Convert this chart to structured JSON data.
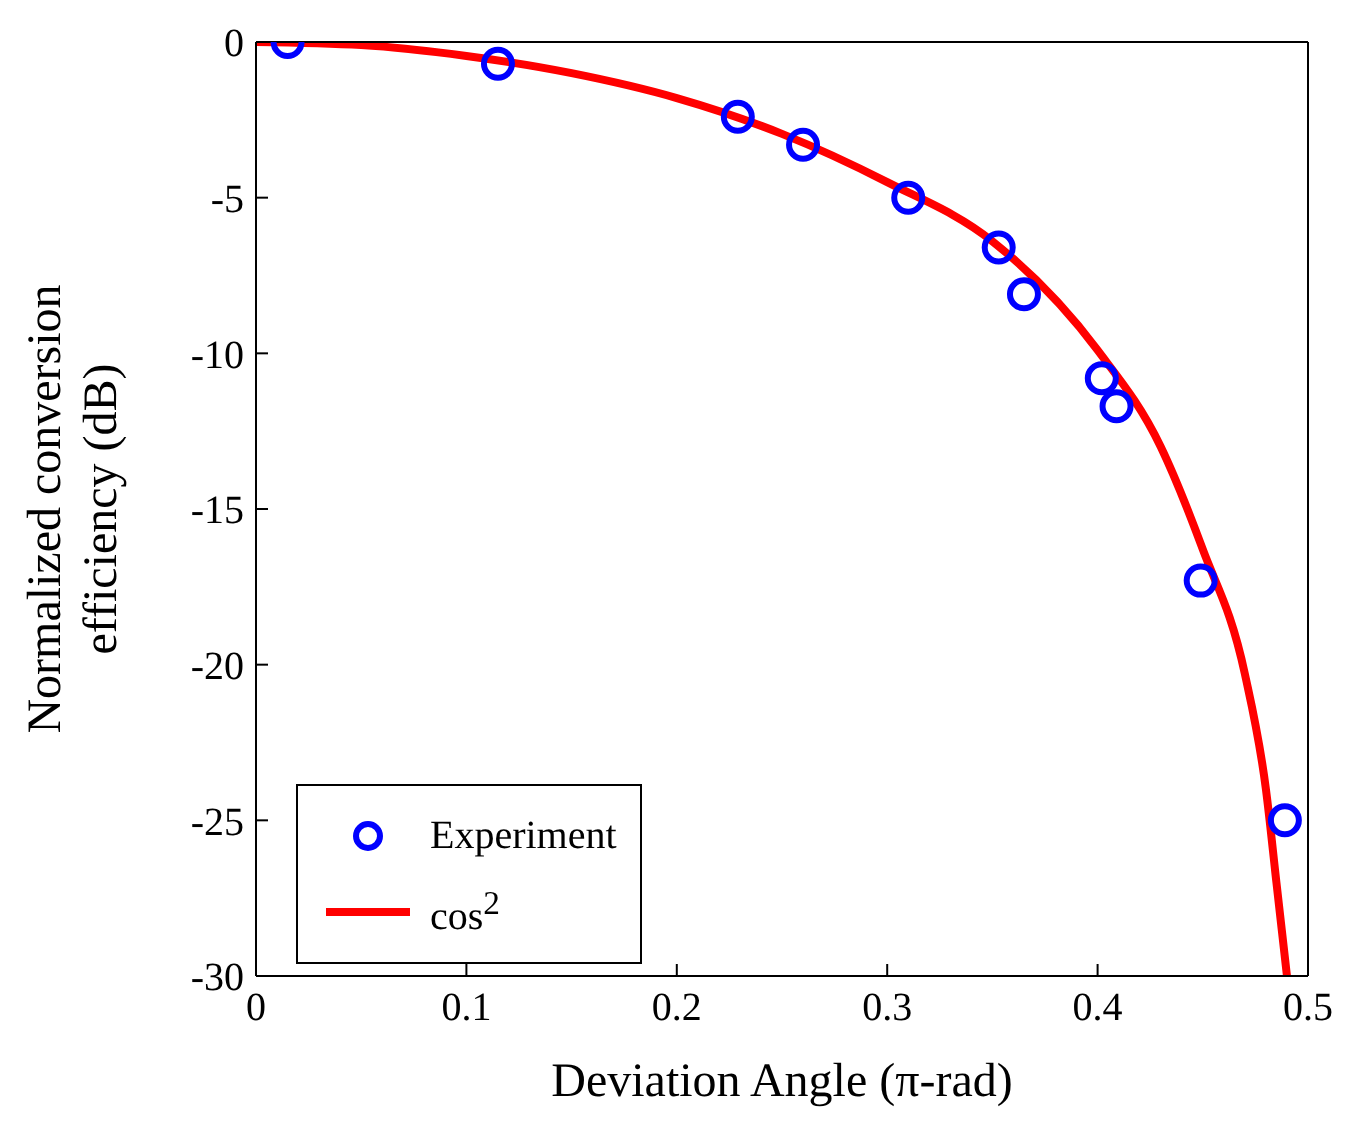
{
  "chart_data": {
    "type": "scatter",
    "xlabel": "Deviation Angle (π-rad)",
    "ylabel": "Normalized conversion efficiency (dB)",
    "xlim": [
      0,
      0.5
    ],
    "xticks": [
      0,
      0.1,
      0.2,
      0.3,
      0.4,
      0.5
    ],
    "ylim": [
      -30,
      0
    ],
    "yticks": [
      -30,
      -25,
      -20,
      -15,
      -10,
      -5,
      0
    ],
    "legend": "bottom left",
    "series": [
      {
        "name": "Experiment",
        "marker": "circle",
        "color": "#0000ff",
        "x": [
          0.015,
          0.115,
          0.229,
          0.26,
          0.31,
          0.353,
          0.365,
          0.402,
          0.409,
          0.449,
          0.489
        ],
        "values": [
          0,
          -0.7,
          -2.4,
          -3.3,
          -5.0,
          -6.6,
          -8.1,
          -10.8,
          -11.7,
          -17.3,
          -25
        ]
      },
      {
        "name": "cos$^{2}$",
        "type": "line",
        "marker": "none",
        "line_style": "solid",
        "color": "#ff0000",
        "x": [
          0,
          0.05,
          0.1,
          0.15,
          0.2,
          0.25,
          0.3,
          0.35,
          0.4,
          0.43,
          0.45,
          0.47,
          0.48,
          0.485,
          0.49
        ],
        "values": [
          0,
          -0.1,
          -0.45,
          -1.0,
          -1.8,
          -2.95,
          -4.5,
          -6.4,
          -9.9,
          -13,
          -16.3,
          -20.3,
          -24,
          -27,
          -30
        ]
      }
    ]
  }
}
